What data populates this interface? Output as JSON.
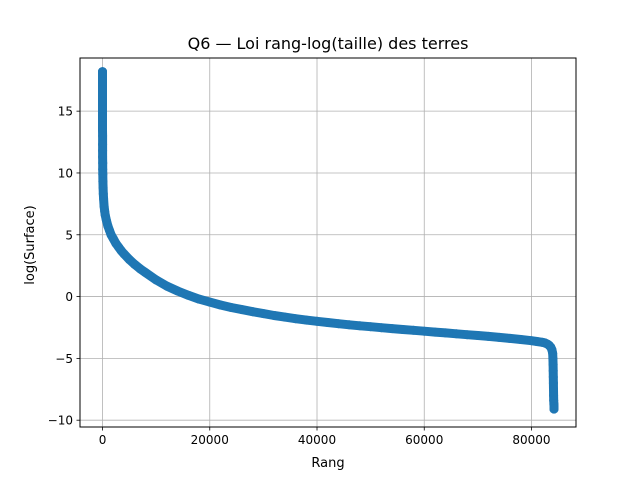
{
  "chart_data": {
    "type": "scatter",
    "title": "Q6 — Loi rang-log(taille) des terres",
    "xlabel": "Rang",
    "ylabel": "log(Surface)",
    "xlim": [
      -4200,
      88300
    ],
    "ylim": [
      -10.55,
      19.3
    ],
    "xticks": [
      0,
      20000,
      40000,
      60000,
      80000
    ],
    "xtick_labels": [
      "0",
      "20000",
      "40000",
      "60000",
      "80000"
    ],
    "yticks": [
      -10,
      -5,
      0,
      5,
      10,
      15
    ],
    "ytick_labels": [
      "−10",
      "−5",
      "0",
      "5",
      "10",
      "15"
    ],
    "grid": true,
    "marker_color": "#1f77b4",
    "series": [
      {
        "x": [
          0,
          1,
          2,
          3,
          5,
          8,
          10,
          15,
          20,
          30,
          40,
          50,
          70,
          100,
          150,
          200,
          300,
          400,
          500,
          700,
          1000,
          1300,
          1600,
          2000,
          2500,
          3000,
          3500,
          4000,
          5000,
          6000,
          7000,
          8000,
          10000,
          12000,
          14000,
          16000,
          18000,
          20000,
          22000,
          24000,
          26000,
          28000,
          30000,
          32000,
          34000,
          36000,
          38000,
          40000,
          42000,
          44000,
          46000,
          48000,
          50000,
          52000,
          54000,
          56000,
          58000,
          60000,
          62000,
          64000,
          66000,
          68000,
          70000,
          72000,
          74000,
          76000,
          78000,
          80000,
          81000,
          82000,
          82500,
          83000,
          83300,
          83600,
          83800,
          83950,
          84000,
          84030,
          84050,
          84070,
          84090,
          84110,
          84130,
          84150,
          84170,
          84190,
          84200
        ],
        "y": [
          18.2,
          17.4,
          15.8,
          14.5,
          13.5,
          13.0,
          12.3,
          11.8,
          11.3,
          10.8,
          10.3,
          9.9,
          9.3,
          8.8,
          8.3,
          7.9,
          7.3,
          6.9,
          6.6,
          6.2,
          5.7,
          5.35,
          5.0,
          4.7,
          4.3,
          4.0,
          3.7,
          3.45,
          3.0,
          2.6,
          2.25,
          1.95,
          1.35,
          0.85,
          0.45,
          0.1,
          -0.2,
          -0.45,
          -0.68,
          -0.88,
          -1.05,
          -1.22,
          -1.38,
          -1.53,
          -1.66,
          -1.79,
          -1.9,
          -2.0,
          -2.1,
          -2.19,
          -2.28,
          -2.36,
          -2.44,
          -2.52,
          -2.59,
          -2.66,
          -2.73,
          -2.8,
          -2.87,
          -2.94,
          -3.01,
          -3.08,
          -3.15,
          -3.22,
          -3.3,
          -3.38,
          -3.47,
          -3.57,
          -3.63,
          -3.7,
          -3.75,
          -3.85,
          -3.95,
          -4.1,
          -4.3,
          -4.6,
          -5.0,
          -5.5,
          -6.0,
          -6.5,
          -7.0,
          -7.5,
          -8.0,
          -8.4,
          -8.7,
          -8.9,
          -9.1
        ]
      }
    ]
  }
}
